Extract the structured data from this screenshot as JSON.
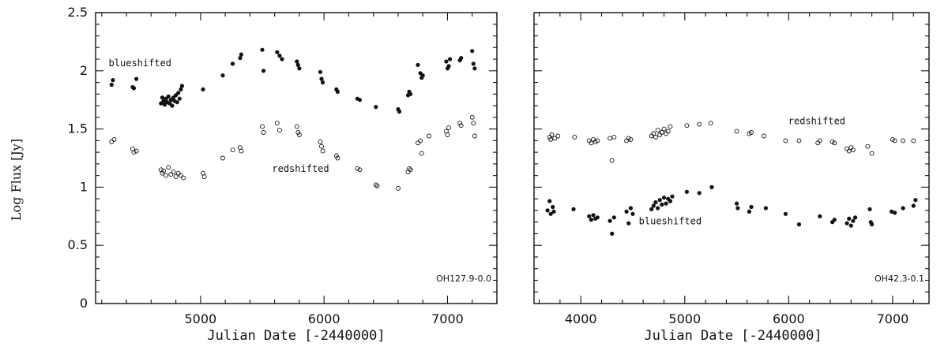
{
  "figure": {
    "ylabel": "Log Flux [Jy]"
  },
  "chart_data": [
    {
      "type": "scatter",
      "panel_id": "OH127.9-0.0",
      "xlabel": "Julian Date [-2440000]",
      "ylabel": "Log Flux [Jy]",
      "xlim": [
        4150,
        7400
      ],
      "ylim": [
        0,
        2.5
      ],
      "xticks": [
        5000,
        6000,
        7000
      ],
      "yticks": [
        0,
        0.5,
        1,
        1.5,
        2,
        2.5
      ],
      "tick_labels_x": [
        "5000",
        "6000",
        "7000"
      ],
      "tick_labels_y": [
        "0",
        "0.5",
        "1",
        "1.5",
        "2",
        "2.5"
      ],
      "annotations": [
        {
          "text": "blueshifted",
          "x": 4510,
          "y": 2.04
        },
        {
          "text": "redshifted",
          "x": 5810,
          "y": 1.13
        }
      ],
      "series": [
        {
          "name": "blueshifted",
          "marker": "filled",
          "points": [
            [
              4280,
              1.88
            ],
            [
              4290,
              1.92
            ],
            [
              4450,
              1.86
            ],
            [
              4460,
              1.85
            ],
            [
              4480,
              1.93
            ],
            [
              4680,
              1.72
            ],
            [
              4690,
              1.77
            ],
            [
              4700,
              1.74
            ],
            [
              4710,
              1.71
            ],
            [
              4720,
              1.76
            ],
            [
              4730,
              1.73
            ],
            [
              4740,
              1.78
            ],
            [
              4750,
              1.72
            ],
            [
              4760,
              1.75
            ],
            [
              4770,
              1.7
            ],
            [
              4780,
              1.77
            ],
            [
              4790,
              1.74
            ],
            [
              4800,
              1.79
            ],
            [
              4810,
              1.73
            ],
            [
              4820,
              1.81
            ],
            [
              4830,
              1.76
            ],
            [
              4840,
              1.84
            ],
            [
              4850,
              1.87
            ],
            [
              5020,
              1.84
            ],
            [
              5180,
              1.96
            ],
            [
              5260,
              2.06
            ],
            [
              5320,
              2.11
            ],
            [
              5330,
              2.14
            ],
            [
              5500,
              2.18
            ],
            [
              5510,
              2.0
            ],
            [
              5620,
              2.16
            ],
            [
              5640,
              2.13
            ],
            [
              5660,
              2.1
            ],
            [
              5780,
              2.08
            ],
            [
              5790,
              2.05
            ],
            [
              5800,
              2.02
            ],
            [
              5970,
              1.99
            ],
            [
              5980,
              1.93
            ],
            [
              5990,
              1.9
            ],
            [
              6100,
              1.84
            ],
            [
              6110,
              1.82
            ],
            [
              6270,
              1.76
            ],
            [
              6290,
              1.75
            ],
            [
              6420,
              1.69
            ],
            [
              6600,
              1.67
            ],
            [
              6610,
              1.65
            ],
            [
              6680,
              1.79
            ],
            [
              6690,
              1.82
            ],
            [
              6700,
              1.8
            ],
            [
              6760,
              2.05
            ],
            [
              6780,
              1.98
            ],
            [
              6790,
              1.94
            ],
            [
              6800,
              1.96
            ],
            [
              6990,
              2.08
            ],
            [
              7000,
              2.02
            ],
            [
              7010,
              2.04
            ],
            [
              7020,
              2.1
            ],
            [
              7100,
              2.09
            ],
            [
              7110,
              2.11
            ],
            [
              7200,
              2.17
            ],
            [
              7210,
              2.06
            ],
            [
              7220,
              2.02
            ]
          ]
        },
        {
          "name": "redshifted",
          "marker": "open",
          "points": [
            [
              4280,
              1.39
            ],
            [
              4300,
              1.41
            ],
            [
              4450,
              1.33
            ],
            [
              4460,
              1.3
            ],
            [
              4480,
              1.31
            ],
            [
              4680,
              1.15
            ],
            [
              4690,
              1.12
            ],
            [
              4700,
              1.14
            ],
            [
              4720,
              1.1
            ],
            [
              4740,
              1.17
            ],
            [
              4760,
              1.11
            ],
            [
              4780,
              1.13
            ],
            [
              4800,
              1.09
            ],
            [
              4820,
              1.12
            ],
            [
              4840,
              1.1
            ],
            [
              4860,
              1.08
            ],
            [
              5020,
              1.12
            ],
            [
              5030,
              1.09
            ],
            [
              5180,
              1.25
            ],
            [
              5260,
              1.32
            ],
            [
              5320,
              1.34
            ],
            [
              5330,
              1.31
            ],
            [
              5500,
              1.52
            ],
            [
              5510,
              1.47
            ],
            [
              5620,
              1.55
            ],
            [
              5640,
              1.49
            ],
            [
              5780,
              1.52
            ],
            [
              5790,
              1.47
            ],
            [
              5800,
              1.45
            ],
            [
              5970,
              1.39
            ],
            [
              5980,
              1.35
            ],
            [
              5990,
              1.31
            ],
            [
              6100,
              1.27
            ],
            [
              6110,
              1.25
            ],
            [
              6270,
              1.16
            ],
            [
              6290,
              1.15
            ],
            [
              6420,
              1.02
            ],
            [
              6430,
              1.01
            ],
            [
              6600,
              0.99
            ],
            [
              6680,
              1.13
            ],
            [
              6690,
              1.16
            ],
            [
              6700,
              1.15
            ],
            [
              6760,
              1.38
            ],
            [
              6780,
              1.4
            ],
            [
              6790,
              1.29
            ],
            [
              6850,
              1.44
            ],
            [
              6990,
              1.48
            ],
            [
              7000,
              1.45
            ],
            [
              7010,
              1.51
            ],
            [
              7100,
              1.55
            ],
            [
              7110,
              1.53
            ],
            [
              7200,
              1.6
            ],
            [
              7210,
              1.55
            ],
            [
              7220,
              1.44
            ]
          ]
        }
      ]
    },
    {
      "type": "scatter",
      "panel_id": "OH42.3-0.1",
      "xlabel": "Julian Date [-2440000]",
      "ylabel": "",
      "xlim": [
        3550,
        7350
      ],
      "ylim": [
        0,
        2.5
      ],
      "xticks": [
        4000,
        5000,
        6000,
        7000
      ],
      "yticks": [
        0,
        0.5,
        1,
        1.5,
        2,
        2.5
      ],
      "tick_labels_x": [
        "4000",
        "5000",
        "6000",
        "7000"
      ],
      "tick_labels_y": [],
      "annotations": [
        {
          "text": "redshifted",
          "x": 6270,
          "y": 1.54
        },
        {
          "text": "blueshifted",
          "x": 4860,
          "y": 0.68
        }
      ],
      "series": [
        {
          "name": "redshifted",
          "marker": "open",
          "points": [
            [
              3700,
              1.43
            ],
            [
              3710,
              1.41
            ],
            [
              3720,
              1.45
            ],
            [
              3750,
              1.42
            ],
            [
              3780,
              1.44
            ],
            [
              3940,
              1.43
            ],
            [
              4080,
              1.4
            ],
            [
              4100,
              1.38
            ],
            [
              4120,
              1.41
            ],
            [
              4140,
              1.39
            ],
            [
              4160,
              1.4
            ],
            [
              4280,
              1.42
            ],
            [
              4300,
              1.23
            ],
            [
              4320,
              1.43
            ],
            [
              4440,
              1.4
            ],
            [
              4460,
              1.42
            ],
            [
              4480,
              1.41
            ],
            [
              4680,
              1.44
            ],
            [
              4700,
              1.46
            ],
            [
              4720,
              1.43
            ],
            [
              4740,
              1.49
            ],
            [
              4760,
              1.45
            ],
            [
              4780,
              1.47
            ],
            [
              4800,
              1.5
            ],
            [
              4820,
              1.46
            ],
            [
              4840,
              1.48
            ],
            [
              4860,
              1.52
            ],
            [
              5020,
              1.53
            ],
            [
              5140,
              1.54
            ],
            [
              5250,
              1.55
            ],
            [
              5500,
              1.48
            ],
            [
              5620,
              1.46
            ],
            [
              5640,
              1.47
            ],
            [
              5760,
              1.44
            ],
            [
              5970,
              1.4
            ],
            [
              6100,
              1.4
            ],
            [
              6280,
              1.38
            ],
            [
              6300,
              1.4
            ],
            [
              6420,
              1.39
            ],
            [
              6440,
              1.38
            ],
            [
              6560,
              1.33
            ],
            [
              6580,
              1.31
            ],
            [
              6600,
              1.34
            ],
            [
              6620,
              1.32
            ],
            [
              6760,
              1.35
            ],
            [
              6800,
              1.29
            ],
            [
              7000,
              1.41
            ],
            [
              7020,
              1.4
            ],
            [
              7100,
              1.4
            ],
            [
              7200,
              1.4
            ]
          ]
        },
        {
          "name": "blueshifted",
          "marker": "filled",
          "points": [
            [
              3680,
              0.8
            ],
            [
              3700,
              0.88
            ],
            [
              3710,
              0.77
            ],
            [
              3730,
              0.83
            ],
            [
              3740,
              0.79
            ],
            [
              3930,
              0.81
            ],
            [
              4080,
              0.75
            ],
            [
              4100,
              0.72
            ],
            [
              4120,
              0.76
            ],
            [
              4140,
              0.73
            ],
            [
              4160,
              0.74
            ],
            [
              4280,
              0.71
            ],
            [
              4300,
              0.6
            ],
            [
              4320,
              0.74
            ],
            [
              4440,
              0.79
            ],
            [
              4460,
              0.69
            ],
            [
              4480,
              0.82
            ],
            [
              4500,
              0.77
            ],
            [
              4680,
              0.81
            ],
            [
              4700,
              0.84
            ],
            [
              4720,
              0.87
            ],
            [
              4740,
              0.82
            ],
            [
              4760,
              0.89
            ],
            [
              4780,
              0.85
            ],
            [
              4800,
              0.91
            ],
            [
              4820,
              0.86
            ],
            [
              4840,
              0.9
            ],
            [
              4860,
              0.88
            ],
            [
              4880,
              0.92
            ],
            [
              5020,
              0.96
            ],
            [
              5140,
              0.95
            ],
            [
              5260,
              1.0
            ],
            [
              5500,
              0.86
            ],
            [
              5510,
              0.82
            ],
            [
              5620,
              0.79
            ],
            [
              5640,
              0.83
            ],
            [
              5780,
              0.82
            ],
            [
              5970,
              0.77
            ],
            [
              6100,
              0.68
            ],
            [
              6300,
              0.75
            ],
            [
              6420,
              0.7
            ],
            [
              6440,
              0.72
            ],
            [
              6560,
              0.69
            ],
            [
              6580,
              0.73
            ],
            [
              6600,
              0.67
            ],
            [
              6620,
              0.71
            ],
            [
              6640,
              0.74
            ],
            [
              6780,
              0.81
            ],
            [
              6790,
              0.7
            ],
            [
              6800,
              0.68
            ],
            [
              6990,
              0.79
            ],
            [
              7020,
              0.78
            ],
            [
              7100,
              0.82
            ],
            [
              7200,
              0.84
            ],
            [
              7220,
              0.89
            ]
          ]
        }
      ]
    }
  ]
}
